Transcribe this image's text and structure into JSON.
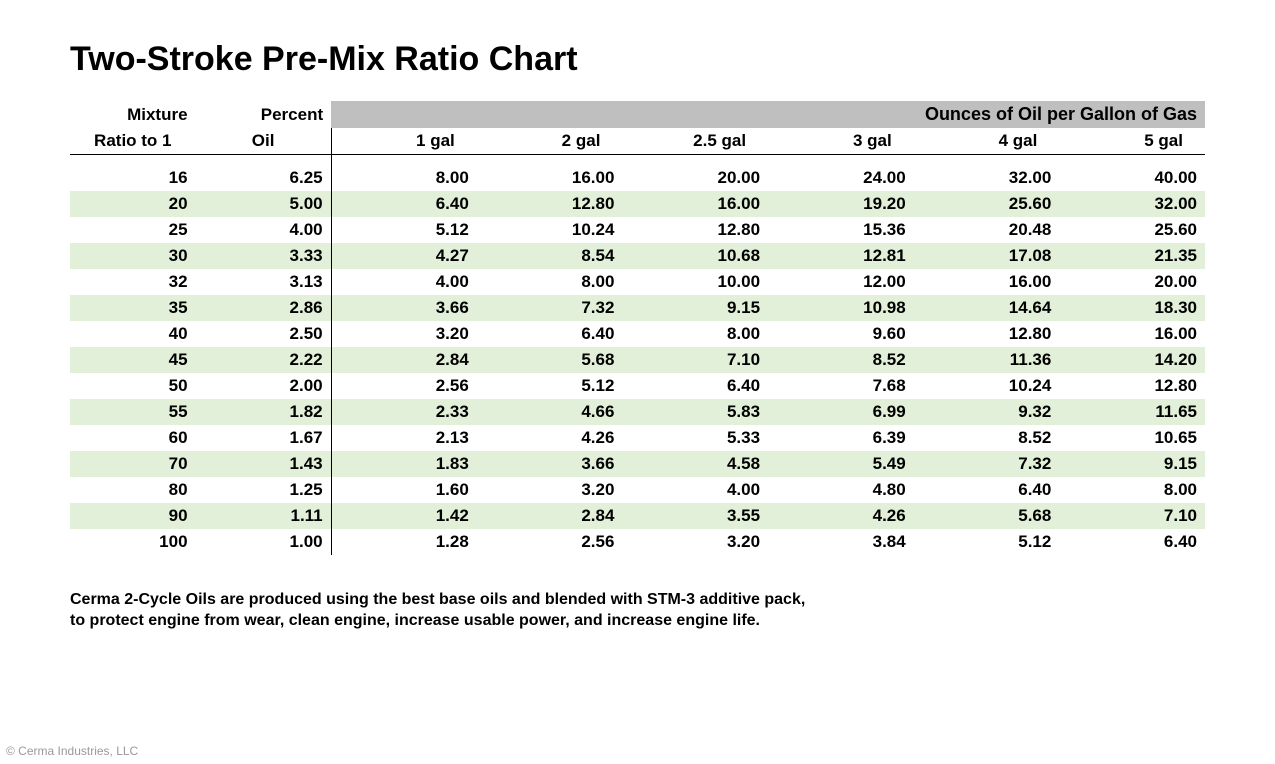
{
  "title": "Two-Stroke Pre-Mix Ratio Chart",
  "type": "table",
  "colors": {
    "background": "#ffffff",
    "text": "#000000",
    "header_band": "#bfbfbf",
    "row_stripe": "#e2f0d9",
    "border": "#000000",
    "copyright_text": "#999999"
  },
  "typography": {
    "title_fontsize_pt": 26,
    "body_fontsize_pt": 13,
    "footnote_fontsize_pt": 12,
    "font_family": "Verdana",
    "weight": "bold"
  },
  "header": {
    "col1_top": "Mixture",
    "col1_bot": "Ratio to 1",
    "col2_top": "Percent",
    "col2_bot": "Oil",
    "group_label": "Ounces of Oil per Gallon of Gas",
    "gallon_labels": [
      "1 gal",
      "2 gal",
      "2.5 gal",
      "3 gal",
      "4 gal",
      "5 gal"
    ]
  },
  "columns": [
    "ratio",
    "percent_oil",
    "1 gal",
    "2 gal",
    "2.5 gal",
    "3 gal",
    "4 gal",
    "5 gal"
  ],
  "rows": [
    {
      "ratio": "16",
      "pct": "6.25",
      "g": [
        "8.00",
        "16.00",
        "20.00",
        "24.00",
        "32.00",
        "40.00"
      ]
    },
    {
      "ratio": "20",
      "pct": "5.00",
      "g": [
        "6.40",
        "12.80",
        "16.00",
        "19.20",
        "25.60",
        "32.00"
      ]
    },
    {
      "ratio": "25",
      "pct": "4.00",
      "g": [
        "5.12",
        "10.24",
        "12.80",
        "15.36",
        "20.48",
        "25.60"
      ]
    },
    {
      "ratio": "30",
      "pct": "3.33",
      "g": [
        "4.27",
        "8.54",
        "10.68",
        "12.81",
        "17.08",
        "21.35"
      ]
    },
    {
      "ratio": "32",
      "pct": "3.13",
      "g": [
        "4.00",
        "8.00",
        "10.00",
        "12.00",
        "16.00",
        "20.00"
      ]
    },
    {
      "ratio": "35",
      "pct": "2.86",
      "g": [
        "3.66",
        "7.32",
        "9.15",
        "10.98",
        "14.64",
        "18.30"
      ]
    },
    {
      "ratio": "40",
      "pct": "2.50",
      "g": [
        "3.20",
        "6.40",
        "8.00",
        "9.60",
        "12.80",
        "16.00"
      ]
    },
    {
      "ratio": "45",
      "pct": "2.22",
      "g": [
        "2.84",
        "5.68",
        "7.10",
        "8.52",
        "11.36",
        "14.20"
      ]
    },
    {
      "ratio": "50",
      "pct": "2.00",
      "g": [
        "2.56",
        "5.12",
        "6.40",
        "7.68",
        "10.24",
        "12.80"
      ]
    },
    {
      "ratio": "55",
      "pct": "1.82",
      "g": [
        "2.33",
        "4.66",
        "5.83",
        "6.99",
        "9.32",
        "11.65"
      ]
    },
    {
      "ratio": "60",
      "pct": "1.67",
      "g": [
        "2.13",
        "4.26",
        "5.33",
        "6.39",
        "8.52",
        "10.65"
      ]
    },
    {
      "ratio": "70",
      "pct": "1.43",
      "g": [
        "1.83",
        "3.66",
        "4.58",
        "5.49",
        "7.32",
        "9.15"
      ]
    },
    {
      "ratio": "80",
      "pct": "1.25",
      "g": [
        "1.60",
        "3.20",
        "4.00",
        "4.80",
        "6.40",
        "8.00"
      ]
    },
    {
      "ratio": "90",
      "pct": "1.11",
      "g": [
        "1.42",
        "2.84",
        "3.55",
        "4.26",
        "5.68",
        "7.10"
      ]
    },
    {
      "ratio": "100",
      "pct": "1.00",
      "g": [
        "1.28",
        "2.56",
        "3.20",
        "3.84",
        "5.12",
        "6.40"
      ]
    }
  ],
  "footnote_line1": "Cerma 2-Cycle Oils are produced using the best base oils and blended with STM-3 additive pack,",
  "footnote_line2": "to protect engine from wear, clean engine, increase usable power, and increase engine life.",
  "copyright": "© Cerma Industries, LLC"
}
